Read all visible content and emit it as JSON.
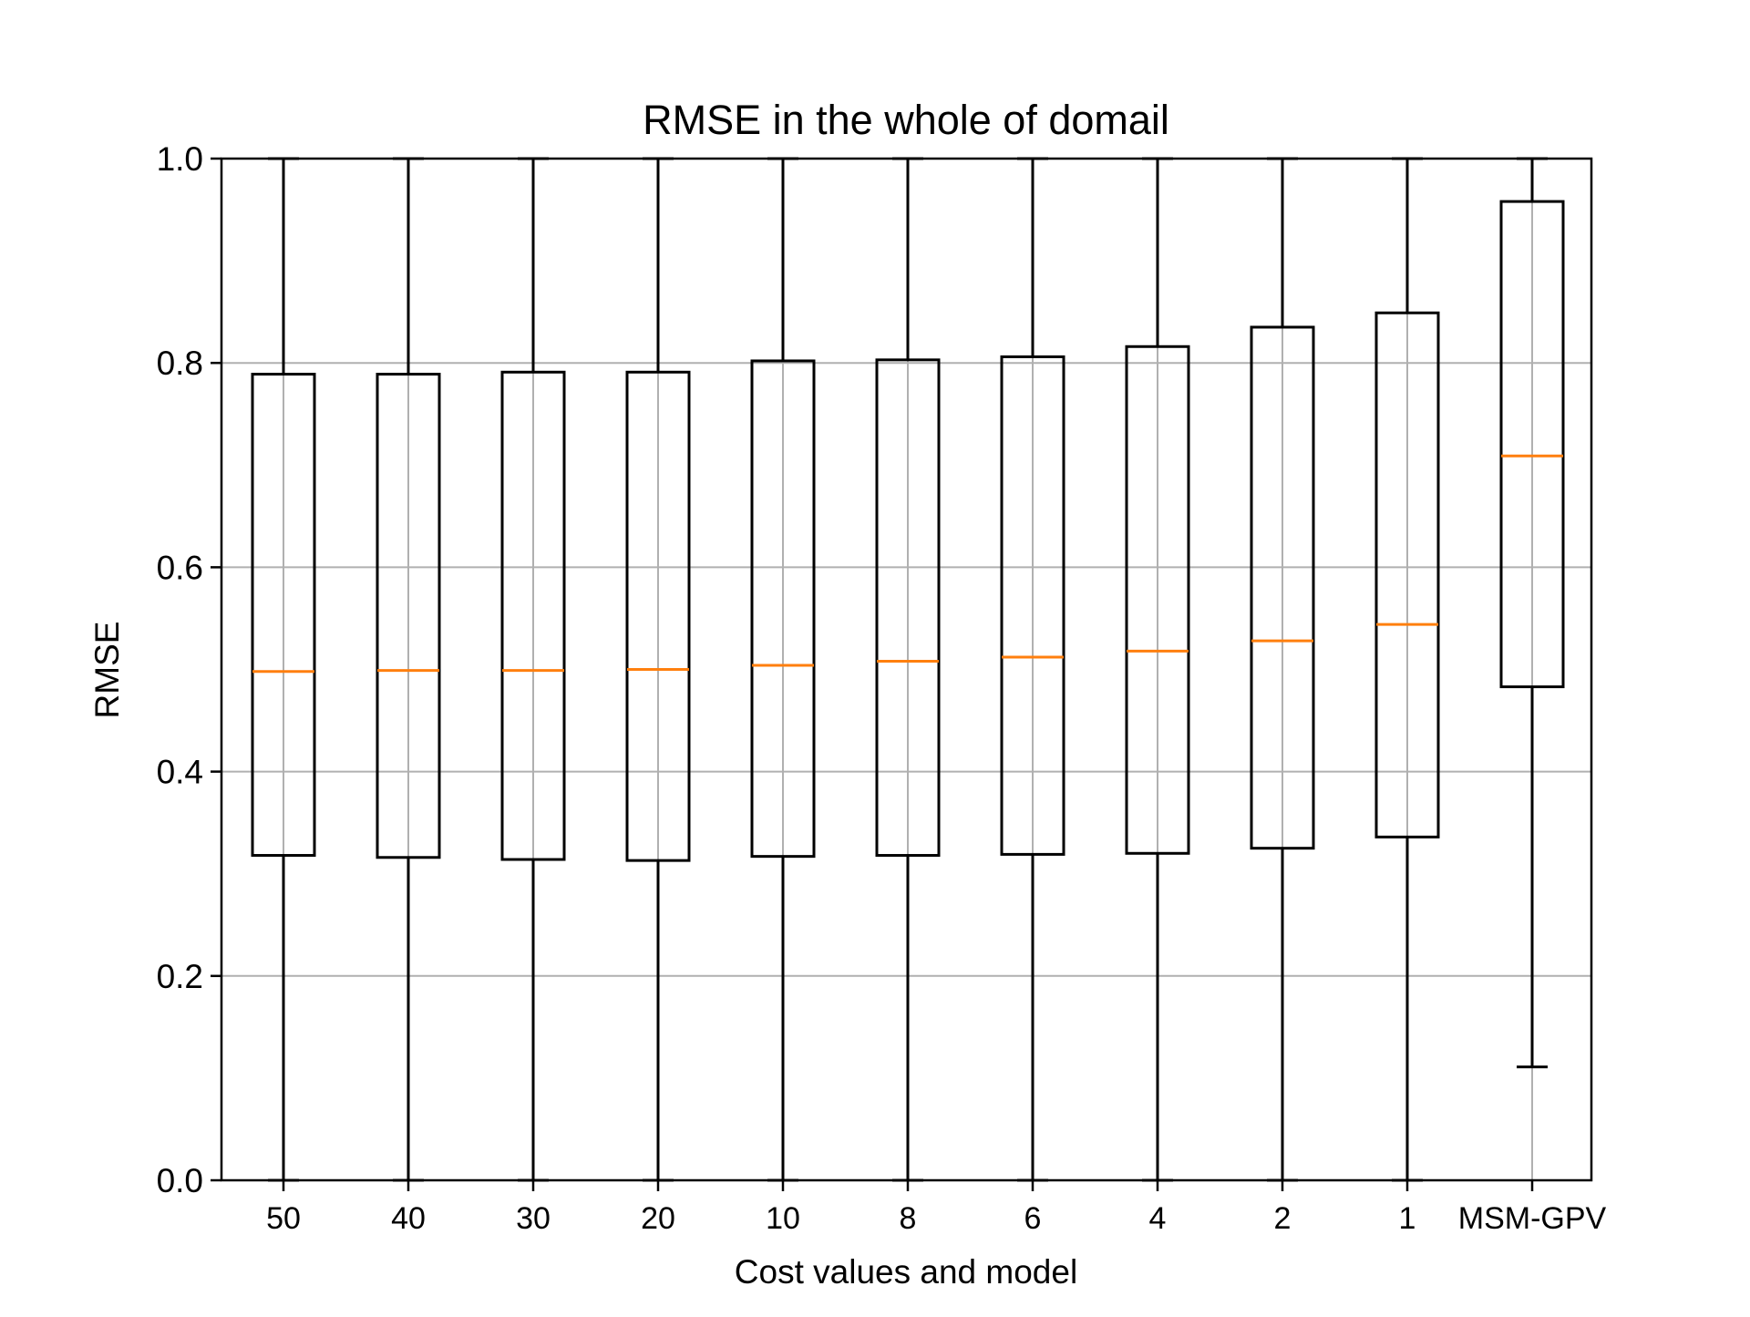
{
  "chart_data": {
    "type": "box",
    "title": "RMSE in the whole of domail",
    "xlabel": "Cost values and model",
    "ylabel": "RMSE",
    "ylim": [
      0,
      1.0
    ],
    "yticks": [
      "0.0",
      "0.2",
      "0.4",
      "0.6",
      "0.8",
      "1.0"
    ],
    "grid": true,
    "categories": [
      "50",
      "40",
      "30",
      "20",
      "10",
      "8",
      "6",
      "4",
      "2",
      "1",
      "MSM-GPV"
    ],
    "series": [
      {
        "whisker_low": 0.0,
        "q1": 0.318,
        "median": 0.498,
        "q3": 0.789,
        "whisker_high": 1.0
      },
      {
        "whisker_low": 0.0,
        "q1": 0.316,
        "median": 0.499,
        "q3": 0.789,
        "whisker_high": 1.0
      },
      {
        "whisker_low": 0.0,
        "q1": 0.314,
        "median": 0.499,
        "q3": 0.791,
        "whisker_high": 1.0
      },
      {
        "whisker_low": 0.0,
        "q1": 0.313,
        "median": 0.5,
        "q3": 0.791,
        "whisker_high": 1.0
      },
      {
        "whisker_low": 0.0,
        "q1": 0.317,
        "median": 0.504,
        "q3": 0.802,
        "whisker_high": 1.0
      },
      {
        "whisker_low": 0.0,
        "q1": 0.318,
        "median": 0.508,
        "q3": 0.803,
        "whisker_high": 1.0
      },
      {
        "whisker_low": 0.0,
        "q1": 0.319,
        "median": 0.512,
        "q3": 0.806,
        "whisker_high": 1.0
      },
      {
        "whisker_low": 0.0,
        "q1": 0.32,
        "median": 0.518,
        "q3": 0.816,
        "whisker_high": 1.0
      },
      {
        "whisker_low": 0.0,
        "q1": 0.325,
        "median": 0.528,
        "q3": 0.835,
        "whisker_high": 1.0
      },
      {
        "whisker_low": 0.0,
        "q1": 0.336,
        "median": 0.544,
        "q3": 0.849,
        "whisker_high": 1.0
      },
      {
        "whisker_low": 0.111,
        "q1": 0.483,
        "median": 0.709,
        "q3": 0.958,
        "whisker_high": 1.0
      }
    ],
    "colors": {
      "box": "#000000",
      "median": "#ff7f0e",
      "grid": "#b0b0b0"
    }
  }
}
